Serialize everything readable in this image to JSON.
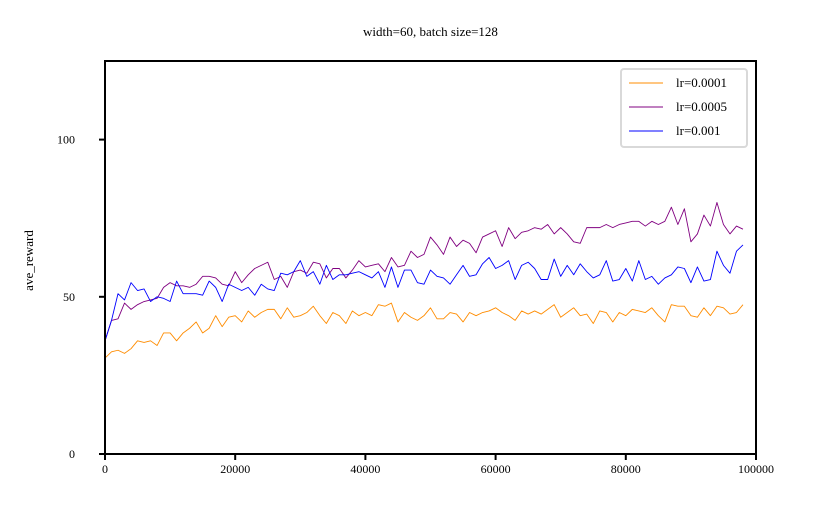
{
  "chart_data": {
    "type": "line",
    "title": "width=60, batch size=128",
    "xlabel": "",
    "ylabel": "ave_reward",
    "xlim": [
      0,
      100000
    ],
    "ylim": [
      0,
      125
    ],
    "xticks": [
      0,
      20000,
      40000,
      60000,
      80000,
      100000
    ],
    "xtick_labels": [
      "0",
      "20000",
      "40000",
      "60000",
      "80000",
      "100000"
    ],
    "yticks": [
      0,
      50,
      100
    ],
    "ytick_labels": [
      "0",
      "50",
      "100"
    ],
    "grid": false,
    "legend_position": "top-right",
    "x": [
      0,
      1000,
      2000,
      3000,
      4000,
      5000,
      6000,
      7000,
      8000,
      9000,
      10000,
      11000,
      12000,
      13000,
      14000,
      15000,
      16000,
      17000,
      18000,
      19000,
      20000,
      21000,
      22000,
      23000,
      24000,
      25000,
      26000,
      27000,
      28000,
      29000,
      30000,
      31000,
      32000,
      33000,
      34000,
      35000,
      36000,
      37000,
      38000,
      39000,
      40000,
      41000,
      42000,
      43000,
      44000,
      45000,
      46000,
      47000,
      48000,
      49000,
      50000,
      51000,
      52000,
      53000,
      54000,
      55000,
      56000,
      57000,
      58000,
      59000,
      60000,
      61000,
      62000,
      63000,
      64000,
      65000,
      66000,
      67000,
      68000,
      69000,
      70000,
      71000,
      72000,
      73000,
      74000,
      75000,
      76000,
      77000,
      78000,
      79000,
      80000,
      81000,
      82000,
      83000,
      84000,
      85000,
      86000,
      87000,
      88000,
      89000,
      90000,
      91000,
      92000,
      93000,
      94000,
      95000,
      96000,
      97000,
      98000
    ],
    "series": [
      {
        "name": "lr=0.0001",
        "color": "#ff8c00",
        "values": [
          30.5,
          32.5,
          33,
          32,
          33.5,
          36,
          35.5,
          36,
          34.5,
          38.5,
          38.5,
          36,
          38.5,
          40,
          42,
          38.5,
          40,
          44,
          40.5,
          43.5,
          44,
          42,
          45.5,
          43.5,
          45,
          46,
          46,
          43,
          46.5,
          43.5,
          44,
          45,
          47,
          44,
          41.5,
          45,
          44,
          41.5,
          45.5,
          44,
          45,
          44,
          47.5,
          47,
          48,
          42,
          45,
          43.5,
          42.5,
          44,
          46.5,
          43,
          43,
          45,
          44.5,
          42,
          45,
          44,
          45,
          45.5,
          46.5,
          45,
          44,
          42.5,
          45.5,
          44.5,
          45.5,
          44.5,
          46,
          47.5,
          43.5,
          45,
          46.5,
          44,
          44.5,
          41.5,
          45.5,
          45,
          42,
          45,
          44,
          46,
          45.5,
          45,
          46.5,
          44,
          42,
          47.5,
          47,
          47,
          44,
          43.5,
          46.5,
          44,
          47,
          46.5,
          44.5,
          45,
          47.5
        ]
      },
      {
        "name": "lr=0.0005",
        "color": "#800080",
        "values": [
          36,
          42.5,
          43,
          48,
          46,
          47.5,
          48.5,
          49,
          49.5,
          53,
          54.5,
          53.5,
          53.5,
          53,
          54,
          56.5,
          56.5,
          56,
          54,
          53.5,
          58,
          54.5,
          57,
          59,
          60,
          61,
          55.5,
          56.5,
          53,
          58,
          58.5,
          57.5,
          61,
          60.5,
          56,
          59,
          59,
          56,
          58.5,
          61.5,
          59.5,
          60,
          60.5,
          58,
          62.5,
          59.5,
          60,
          64.5,
          62.5,
          63.5,
          69,
          66.5,
          63.5,
          69,
          66,
          68,
          67,
          64,
          69,
          70,
          71,
          66,
          72,
          68.5,
          70.5,
          71,
          72,
          71.5,
          73,
          70,
          72,
          70,
          67.5,
          67,
          72,
          72,
          72,
          73,
          72,
          73,
          73.5,
          74,
          74,
          72.5,
          74,
          73,
          74,
          78.5,
          73,
          78,
          67.5,
          70,
          76,
          72.5,
          80,
          73,
          70,
          72.5,
          71.5
        ]
      },
      {
        "name": "lr=0.001",
        "color": "#0000ff",
        "values": [
          36,
          42.5,
          51,
          49,
          54.5,
          52,
          52.5,
          48.5,
          50,
          49.5,
          48.5,
          55,
          51,
          51,
          51,
          50.5,
          55,
          53,
          48.5,
          54,
          53,
          52,
          53,
          50.5,
          54,
          52.5,
          52,
          57.5,
          57,
          58,
          61.5,
          56.5,
          58,
          54,
          60,
          55.5,
          57,
          57,
          57.5,
          58,
          57,
          56,
          58,
          53,
          59.5,
          53,
          58.5,
          58.5,
          54.5,
          54,
          58.5,
          56.5,
          56,
          54,
          57,
          60,
          56.5,
          57,
          60.5,
          62.5,
          59,
          60,
          61.5,
          55.5,
          60,
          61,
          59,
          55.5,
          55.5,
          62,
          56.5,
          60,
          57,
          60.5,
          58,
          56,
          57,
          61.5,
          55,
          55.5,
          59,
          55,
          61.5,
          55.5,
          56.5,
          54,
          56,
          57,
          59.5,
          59,
          54.5,
          59.5,
          55,
          55.5,
          64.5,
          60,
          57.5,
          64.5,
          66.5
        ]
      }
    ]
  }
}
